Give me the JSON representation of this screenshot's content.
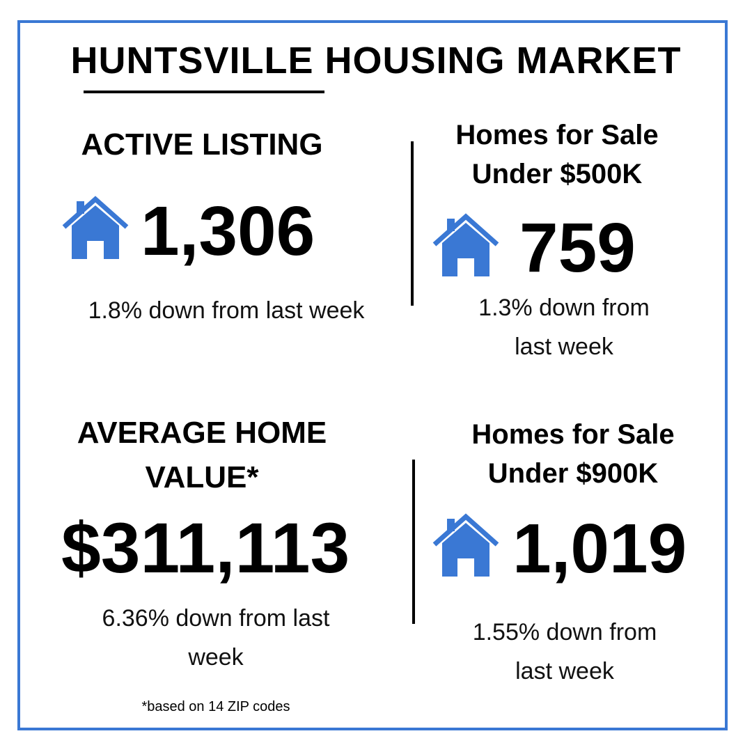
{
  "title": "HUNTSVILLE HOUSING MARKET",
  "accent_color": "#3a78d4",
  "icon_name": "house-icon",
  "quadrants": {
    "active": {
      "heading": "ACTIVE LISTING",
      "value": "1,306",
      "change": "1.8% down from last week"
    },
    "under500": {
      "heading_line1": "Homes for Sale",
      "heading_line2": "Under $500K",
      "value": "759",
      "change_line1": "1.3% down from",
      "change_line2": "last week"
    },
    "avg_value": {
      "heading_line1": "AVERAGE HOME",
      "heading_line2": "VALUE*",
      "value": "$311,113",
      "change_line1": "6.36% down from last",
      "change_line2": "week"
    },
    "under900": {
      "heading_line1": "Homes for Sale",
      "heading_line2": "Under $900K",
      "value": "1,019",
      "change_line1": "1.55% down from",
      "change_line2": "last week"
    }
  },
  "footnote": "*based on 14 ZIP codes"
}
